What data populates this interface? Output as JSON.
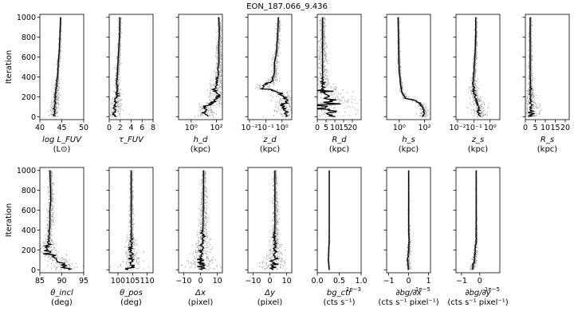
{
  "title": "EON_187.066_9.436",
  "ylabel": "Iteration",
  "chart_data": [
    {
      "type": "line",
      "row": 1,
      "param": "logL_FUV",
      "xlabel": "log L_FUV",
      "units": "(L⊙)",
      "xlim": [
        40,
        50
      ],
      "xticks": [
        40,
        45,
        50
      ],
      "xtick_labels": [
        "40",
        "45",
        "50"
      ],
      "x_scale": "linear",
      "ylim": [
        -30,
        1030
      ],
      "yticks": [
        0,
        200,
        400,
        600,
        800,
        1000
      ],
      "trace_points": [
        [
          43.2,
          0
        ],
        [
          43.3,
          60
        ],
        [
          43.5,
          150
        ],
        [
          43.6,
          250
        ],
        [
          43.9,
          350
        ],
        [
          44.1,
          450
        ],
        [
          44.2,
          550
        ],
        [
          44.4,
          650
        ],
        [
          44.5,
          750
        ],
        [
          44.6,
          850
        ],
        [
          44.7,
          1000
        ]
      ],
      "scatter_spread": [
        [
          0,
          1.0
        ],
        [
          150,
          0.8
        ],
        [
          400,
          0.3
        ],
        [
          1000,
          0.12
        ]
      ]
    },
    {
      "type": "line",
      "row": 1,
      "param": "tau_FUV",
      "xlabel": "τ_FUV",
      "units": "",
      "xlim": [
        0,
        8
      ],
      "xticks": [
        0,
        2,
        4,
        6,
        8
      ],
      "xtick_labels": [
        "0",
        "2",
        "4",
        "6",
        "8"
      ],
      "x_scale": "linear",
      "ylim": [
        -30,
        1030
      ],
      "trace_points": [
        [
          1.0,
          0
        ],
        [
          0.9,
          40
        ],
        [
          1.0,
          80
        ],
        [
          1.2,
          150
        ],
        [
          1.5,
          250
        ],
        [
          1.4,
          350
        ],
        [
          1.5,
          450
        ],
        [
          1.6,
          550
        ],
        [
          1.7,
          650
        ],
        [
          1.8,
          750
        ],
        [
          1.9,
          850
        ],
        [
          1.9,
          1000
        ]
      ],
      "scatter_spread": [
        [
          0,
          1.8
        ],
        [
          120,
          1.2
        ],
        [
          300,
          0.4
        ],
        [
          1000,
          0.25
        ]
      ]
    },
    {
      "type": "line",
      "row": 1,
      "param": "h_d",
      "xlabel": "h_d",
      "units": "(kpc)",
      "xlim": [
        0.1,
        300
      ],
      "xticks": [
        1,
        100
      ],
      "xtick_labels": [
        "10⁰",
        "10²"
      ],
      "x_scale": "log",
      "ylim": [
        -30,
        1030
      ],
      "trace_points": [
        [
          20,
          0
        ],
        [
          10,
          100
        ],
        [
          60,
          160
        ],
        [
          150,
          200
        ],
        [
          80,
          260
        ],
        [
          120,
          320
        ],
        [
          100,
          380
        ],
        [
          150,
          420
        ],
        [
          130,
          480
        ],
        [
          160,
          560
        ],
        [
          150,
          700
        ],
        [
          170,
          850
        ],
        [
          150,
          1000
        ]
      ],
      "scatter_spread": [
        [
          0,
          1.3
        ],
        [
          150,
          1.5
        ],
        [
          450,
          0.5
        ],
        [
          1000,
          0.15
        ]
      ]
    },
    {
      "type": "line",
      "row": 1,
      "param": "z_d",
      "xlabel": "z_d",
      "units": "(kpc)",
      "xlim": [
        0.008,
        4
      ],
      "xticks": [
        0.01,
        0.1,
        1
      ],
      "xtick_labels": [
        "10⁻²",
        "10⁻¹",
        "10⁰"
      ],
      "x_scale": "log",
      "ylim": [
        -30,
        1030
      ],
      "trace_points": [
        [
          1.5,
          0
        ],
        [
          2.0,
          50
        ],
        [
          1.2,
          100
        ],
        [
          2.0,
          160
        ],
        [
          1.0,
          220
        ],
        [
          0.05,
          280
        ],
        [
          0.1,
          330
        ],
        [
          0.25,
          360
        ],
        [
          0.35,
          450
        ],
        [
          0.35,
          550
        ],
        [
          0.45,
          650
        ],
        [
          0.5,
          750
        ],
        [
          0.55,
          850
        ],
        [
          0.6,
          1000
        ]
      ],
      "scatter_spread": [
        [
          0,
          1.2
        ],
        [
          300,
          1.0
        ],
        [
          420,
          0.3
        ],
        [
          1000,
          0.15
        ]
      ]
    },
    {
      "type": "line",
      "row": 1,
      "param": "R_d",
      "xlabel": "R_d",
      "units": "(kpc)",
      "xlim": [
        0,
        25
      ],
      "xticks": [
        0,
        5,
        10,
        15,
        20
      ],
      "xtick_labels": [
        "0",
        "5",
        "10",
        "15",
        "20"
      ],
      "x_scale": "linear",
      "ylim": [
        -30,
        1030
      ],
      "trace_points": [
        [
          10,
          0
        ],
        [
          4,
          80
        ],
        [
          8,
          160
        ],
        [
          4,
          240
        ],
        [
          3,
          320
        ],
        [
          3,
          450
        ],
        [
          3,
          600
        ],
        [
          3,
          800
        ],
        [
          3,
          1000
        ]
      ],
      "scatter_spread": [
        [
          0,
          9.0
        ],
        [
          250,
          4.0
        ],
        [
          350,
          1.0
        ],
        [
          1000,
          0.5
        ]
      ]
    },
    {
      "type": "line",
      "row": 1,
      "param": "h_s",
      "xlabel": "h_s",
      "units": "(kpc)",
      "xlim": [
        0.1,
        300
      ],
      "xticks": [
        1,
        100
      ],
      "xtick_labels": [
        "10⁰",
        "10²"
      ],
      "x_scale": "log",
      "ylim": [
        -30,
        1030
      ],
      "trace_points": [
        [
          80,
          0
        ],
        [
          100,
          60
        ],
        [
          50,
          120
        ],
        [
          3,
          180
        ],
        [
          1.5,
          250
        ],
        [
          1.2,
          350
        ],
        [
          1.0,
          450
        ],
        [
          0.9,
          600
        ],
        [
          0.85,
          800
        ],
        [
          0.8,
          1000
        ]
      ],
      "scatter_spread": [
        [
          0,
          0.6
        ],
        [
          150,
          0.6
        ],
        [
          250,
          0.2
        ],
        [
          1000,
          0.1
        ]
      ]
    },
    {
      "type": "line",
      "row": 1,
      "param": "z_s",
      "xlabel": "z_s",
      "units": "(kpc)",
      "xlim": [
        0.008,
        4
      ],
      "xticks": [
        0.01,
        0.1,
        1
      ],
      "xtick_labels": [
        "10⁻²",
        "10⁻¹",
        "10⁰"
      ],
      "x_scale": "log",
      "ylim": [
        -30,
        1030
      ],
      "trace_points": [
        [
          0.3,
          0
        ],
        [
          0.2,
          60
        ],
        [
          0.15,
          150
        ],
        [
          0.1,
          250
        ],
        [
          0.09,
          350
        ],
        [
          0.1,
          450
        ],
        [
          0.11,
          550
        ],
        [
          0.12,
          650
        ],
        [
          0.13,
          800
        ],
        [
          0.13,
          1000
        ]
      ],
      "scatter_spread": [
        [
          0,
          1.0
        ],
        [
          150,
          0.7
        ],
        [
          400,
          0.2
        ],
        [
          1000,
          0.1
        ]
      ]
    },
    {
      "type": "line",
      "row": 1,
      "param": "R_s",
      "xlabel": "R_s",
      "units": "(kpc)",
      "xlim": [
        0,
        22
      ],
      "xticks": [
        0,
        5,
        10,
        15,
        20
      ],
      "xtick_labels": [
        "0",
        "5",
        "10",
        "15",
        "20"
      ],
      "x_scale": "linear",
      "ylim": [
        -30,
        1030
      ],
      "trace_points": [
        [
          3,
          0
        ],
        [
          2.6,
          100
        ],
        [
          2.5,
          200
        ],
        [
          2.4,
          400
        ],
        [
          2.4,
          600
        ],
        [
          2.4,
          800
        ],
        [
          2.4,
          1000
        ]
      ],
      "scatter_spread": [
        [
          0,
          2.5
        ],
        [
          100,
          1.5
        ],
        [
          300,
          0.4
        ],
        [
          1000,
          0.2
        ]
      ]
    },
    {
      "type": "line",
      "row": 2,
      "param": "theta_incl",
      "xlabel": "θ_incl",
      "units": "(deg)",
      "xlim": [
        85,
        95
      ],
      "xticks": [
        85,
        90,
        95
      ],
      "xtick_labels": [
        "85",
        "90",
        "95"
      ],
      "x_scale": "linear",
      "ylim": [
        -30,
        1030
      ],
      "trace_points": [
        [
          91,
          0
        ],
        [
          90,
          50
        ],
        [
          89,
          100
        ],
        [
          87,
          160
        ],
        [
          86.5,
          220
        ],
        [
          87,
          300
        ],
        [
          87.2,
          400
        ],
        [
          87.3,
          500
        ],
        [
          87.3,
          600
        ],
        [
          87.5,
          700
        ],
        [
          87.4,
          850
        ],
        [
          87.3,
          1000
        ]
      ],
      "scatter_spread": [
        [
          0,
          3.0
        ],
        [
          220,
          2.5
        ],
        [
          300,
          0.6
        ],
        [
          1000,
          0.4
        ]
      ]
    },
    {
      "type": "line",
      "row": 2,
      "param": "theta_pos",
      "xlabel": "θ_pos",
      "units": "(deg)",
      "xlim": [
        97,
        112
      ],
      "xticks": [
        100,
        105,
        110
      ],
      "xtick_labels": [
        "100",
        "105",
        "110"
      ],
      "x_scale": "linear",
      "ylim": [
        -30,
        1030
      ],
      "trace_points": [
        [
          104.3,
          0
        ],
        [
          104.5,
          100
        ],
        [
          104.4,
          200
        ],
        [
          104.6,
          300
        ],
        [
          104.5,
          450
        ],
        [
          104.5,
          600
        ],
        [
          104.5,
          800
        ],
        [
          104.5,
          1000
        ]
      ],
      "scatter_spread": [
        [
          0,
          3.0
        ],
        [
          150,
          1.2
        ],
        [
          400,
          0.4
        ],
        [
          1000,
          0.25
        ]
      ]
    },
    {
      "type": "line",
      "row": 2,
      "param": "delta_x",
      "xlabel": "Δx",
      "units": "(pixel)",
      "xlim": [
        -13,
        13
      ],
      "xticks": [
        -10,
        0,
        10
      ],
      "xtick_labels": [
        "−10",
        "0",
        "10"
      ],
      "x_scale": "linear",
      "ylim": [
        -30,
        1030
      ],
      "trace_points": [
        [
          0,
          0
        ],
        [
          0.5,
          100
        ],
        [
          1,
          200
        ],
        [
          1.2,
          300
        ],
        [
          1.5,
          450
        ],
        [
          1.7,
          600
        ],
        [
          1.8,
          800
        ],
        [
          1.8,
          1000
        ]
      ],
      "scatter_spread": [
        [
          0,
          4.0
        ],
        [
          150,
          2.0
        ],
        [
          400,
          0.8
        ],
        [
          1000,
          0.4
        ]
      ]
    },
    {
      "type": "line",
      "row": 2,
      "param": "delta_y",
      "xlabel": "Δy",
      "units": "(pixel)",
      "xlim": [
        -13,
        13
      ],
      "xticks": [
        -10,
        0,
        10
      ],
      "xtick_labels": [
        "−10",
        "0",
        "10"
      ],
      "x_scale": "linear",
      "ylim": [
        -30,
        1030
      ],
      "trace_points": [
        [
          2,
          0
        ],
        [
          2.5,
          100
        ],
        [
          2.8,
          200
        ],
        [
          3,
          300
        ],
        [
          3,
          450
        ],
        [
          3,
          600
        ],
        [
          3,
          800
        ],
        [
          3,
          1000
        ]
      ],
      "scatter_spread": [
        [
          0,
          3.5
        ],
        [
          150,
          1.5
        ],
        [
          400,
          0.6
        ],
        [
          1000,
          0.3
        ]
      ]
    },
    {
      "type": "line",
      "row": 2,
      "param": "bg_ctr",
      "xlabel": "bg_ctr",
      "units": "(cts s⁻¹)",
      "exponent": "1e−3",
      "xlim": [
        0,
        1.0
      ],
      "xticks": [
        0.0,
        0.5,
        1.0
      ],
      "xtick_labels": [
        "0.0",
        "0.5",
        "1.0"
      ],
      "x_scale": "linear",
      "ylim": [
        -30,
        1030
      ],
      "trace_points": [
        [
          0.27,
          0
        ],
        [
          0.25,
          100
        ],
        [
          0.26,
          200
        ],
        [
          0.27,
          300
        ],
        [
          0.27,
          450
        ],
        [
          0.27,
          600
        ],
        [
          0.27,
          800
        ],
        [
          0.27,
          1000
        ]
      ],
      "scatter_spread": [
        [
          0,
          0.15
        ],
        [
          150,
          0.1
        ],
        [
          400,
          0.05
        ],
        [
          1000,
          0.03
        ]
      ]
    },
    {
      "type": "line",
      "row": 2,
      "param": "dbg_dx",
      "xlabel": "∂bg/∂x",
      "units": "(cts s⁻¹ pixel⁻¹)",
      "exponent": "1e−5",
      "xlim": [
        -1.1,
        1.1
      ],
      "xticks": [
        -1,
        0,
        1
      ],
      "xtick_labels": [
        "−1",
        "0",
        "1"
      ],
      "x_scale": "linear",
      "ylim": [
        -30,
        1030
      ],
      "trace_points": [
        [
          0,
          0
        ],
        [
          -0.05,
          100
        ],
        [
          0,
          200
        ],
        [
          0.02,
          300
        ],
        [
          0,
          450
        ],
        [
          0,
          600
        ],
        [
          0,
          800
        ],
        [
          0,
          1000
        ]
      ],
      "scatter_spread": [
        [
          0,
          0.45
        ],
        [
          150,
          0.3
        ],
        [
          400,
          0.15
        ],
        [
          1000,
          0.08
        ]
      ]
    },
    {
      "type": "line",
      "row": 2,
      "param": "dbg_dy",
      "xlabel": "∂bg/∂y",
      "units": "(cts s⁻¹ pixel⁻¹)",
      "exponent": "1e−5",
      "xlim": [
        -1.3,
        1.1
      ],
      "xticks": [
        -1,
        0
      ],
      "xtick_labels": [
        "−1",
        "0"
      ],
      "x_scale": "linear",
      "ylim": [
        -30,
        1030
      ],
      "trace_points": [
        [
          -0.4,
          0
        ],
        [
          -0.3,
          100
        ],
        [
          -0.25,
          200
        ],
        [
          -0.2,
          300
        ],
        [
          -0.2,
          450
        ],
        [
          -0.2,
          600
        ],
        [
          -0.2,
          800
        ],
        [
          -0.2,
          1000
        ]
      ],
      "scatter_spread": [
        [
          0,
          0.6
        ],
        [
          150,
          0.4
        ],
        [
          400,
          0.15
        ],
        [
          1000,
          0.08
        ]
      ]
    }
  ]
}
